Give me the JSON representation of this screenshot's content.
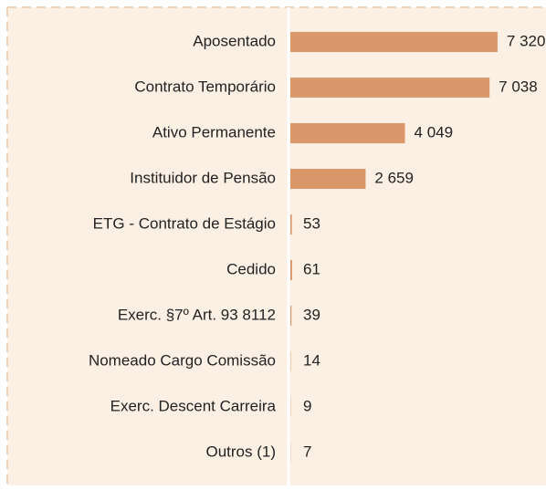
{
  "chart_data": {
    "type": "hbar",
    "categories": [
      "Aposentado",
      "Contrato Temporário",
      "Ativo Permanente",
      "Instituidor de Pensão",
      "ETG - Contrato de Estágio",
      "Cedido",
      "Exerc. §7º Art. 93 8112",
      "Nomeado Cargo Comissão",
      "Exerc. Descent Carreira",
      "Outros (1)"
    ],
    "values": [
      7320,
      7038,
      4049,
      2659,
      53,
      61,
      39,
      14,
      9,
      7
    ],
    "value_labels": [
      "7 320",
      "7 038",
      "4 049",
      "2 659",
      "53",
      "61",
      "39",
      "14",
      "9",
      "7"
    ],
    "color": "#d9976a",
    "xlim": [
      0,
      8000
    ]
  }
}
